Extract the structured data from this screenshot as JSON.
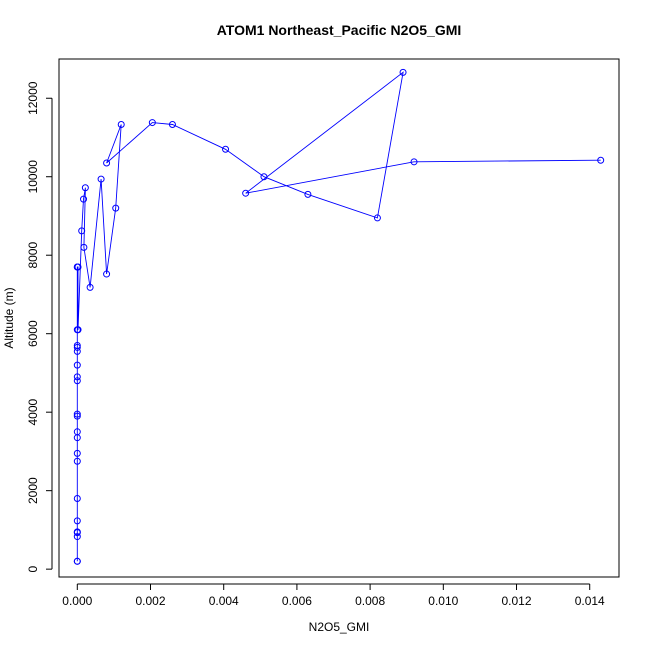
{
  "chart_data": {
    "type": "line",
    "title": "ATOM1 Northeast_Pacific N2O5_GMI",
    "xlabel": "N2O5_GMI",
    "ylabel": "Altitude (m)",
    "xlim": [
      -0.0005,
      0.0148
    ],
    "ylim": [
      -200,
      13000
    ],
    "x_ticks": [
      0,
      0.002,
      0.004,
      0.006,
      0.008,
      0.01,
      0.012,
      0.014
    ],
    "x_tick_labels": [
      "0.000",
      "0.002",
      "0.004",
      "0.006",
      "0.008",
      "0.010",
      "0.012",
      "0.014"
    ],
    "y_ticks": [
      0,
      2000,
      4000,
      6000,
      8000,
      10000,
      12000
    ],
    "y_tick_labels": [
      "0",
      "2000",
      "4000",
      "6000",
      "8000",
      "10000",
      "12000"
    ],
    "grid": false,
    "color": "#0000ff",
    "marker": "open-circle",
    "series": [
      {
        "x": [
          0.0,
          0.0,
          0.0,
          0.0,
          0.0,
          0.0,
          0.0,
          0.0,
          0.0,
          0.0,
          0.0,
          0.0,
          0.0,
          0.0,
          0.0,
          0.0,
          0.0,
          0.0,
          0.0,
          0.0,
          0.0,
          0.0,
          2e-05,
          2e-05,
          0.00012,
          0.00017,
          0.00022,
          0.00018,
          0.00035,
          0.00065,
          0.0008,
          0.00105,
          0.0012,
          0.0008,
          0.00205,
          0.0026,
          0.00405,
          0.0051,
          0.0063,
          0.0082,
          0.0089,
          0.0046,
          0.0092,
          0.0143
        ],
        "y": [
          200,
          200,
          830,
          930,
          950,
          1230,
          1800,
          2750,
          2950,
          3350,
          3500,
          3900,
          3950,
          4800,
          4900,
          5200,
          5550,
          5650,
          5700,
          6100,
          7700,
          7700,
          7700,
          6100,
          8620,
          9430,
          9720,
          8200,
          7180,
          9940,
          7520,
          9200,
          11330,
          10350,
          11380,
          11330,
          10700,
          10000,
          9550,
          8950,
          12660,
          9580,
          10380,
          10420
        ]
      }
    ]
  }
}
